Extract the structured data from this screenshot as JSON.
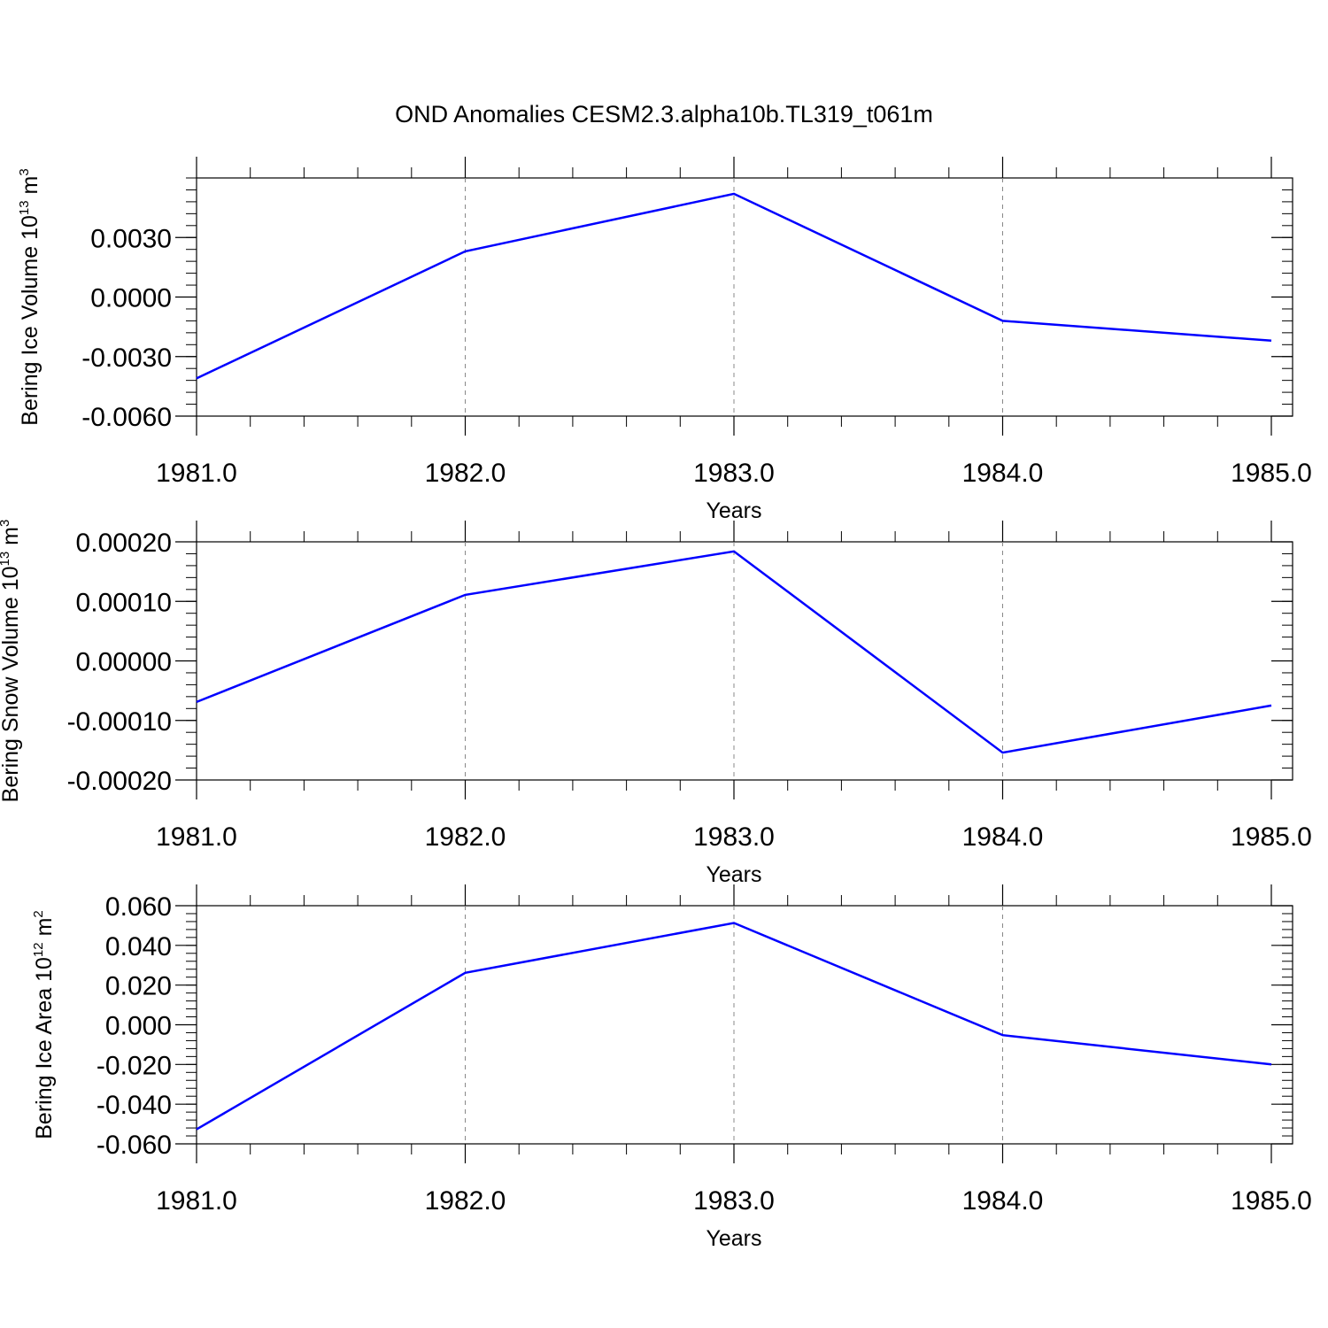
{
  "title": "OND Anomalies CESM2.3.alpha10b.TL319_t061m",
  "colors": {
    "series": "#0000ff",
    "axes": "#000000",
    "grid": "#888888"
  },
  "chart_data": [
    {
      "type": "line",
      "xlabel": "Years",
      "ylabel": {
        "main": "Bering Ice Volume 10",
        "exp": "13",
        "unit": " m",
        "unit_exp": "3"
      },
      "xlim": [
        1981,
        1985
      ],
      "ylim": [
        -0.006,
        0.006
      ],
      "xticks": [
        1981,
        1982,
        1983,
        1984,
        1985
      ],
      "xtick_labels": [
        "1981.0",
        "1982.0",
        "1983.0",
        "1984.0",
        "1985.0"
      ],
      "yticks": [
        0.003,
        0.0,
        -0.003,
        -0.006
      ],
      "ytick_labels": [
        "0.0030",
        "0.0000",
        "-0.0030",
        "-0.0060"
      ],
      "x": [
        1981,
        1982,
        1983,
        1984,
        1985
      ],
      "y": [
        -0.0041,
        0.0023,
        0.0052,
        -0.0012,
        -0.0022
      ],
      "grid": "vertical dashed at major x ticks"
    },
    {
      "type": "line",
      "xlabel": "Years",
      "ylabel": {
        "main": "Bering Snow Volume 10",
        "exp": "13",
        "unit": " m",
        "unit_exp": "3"
      },
      "xlim": [
        1981,
        1985
      ],
      "ylim": [
        -0.0002,
        0.0002
      ],
      "xticks": [
        1981,
        1982,
        1983,
        1984,
        1985
      ],
      "xtick_labels": [
        "1981.0",
        "1982.0",
        "1983.0",
        "1984.0",
        "1985.0"
      ],
      "yticks": [
        0.0002,
        0.0001,
        0.0,
        -0.0001,
        -0.0002
      ],
      "ytick_labels": [
        "0.00020",
        "0.00010",
        "0.00000",
        "-0.00010",
        "-0.00020"
      ],
      "x": [
        1981,
        1982,
        1983,
        1984,
        1985
      ],
      "y": [
        -6.9e-05,
        0.000111,
        0.000184,
        -0.000154,
        -7.5e-05
      ],
      "grid": "vertical dashed at major x ticks"
    },
    {
      "type": "line",
      "xlabel": "Years",
      "ylabel": {
        "main": "Bering Ice Area 10",
        "exp": "12",
        "unit": " m",
        "unit_exp": "2"
      },
      "xlim": [
        1981,
        1985
      ],
      "ylim": [
        -0.06,
        0.06
      ],
      "xticks": [
        1981,
        1982,
        1983,
        1984,
        1985
      ],
      "xtick_labels": [
        "1981.0",
        "1982.0",
        "1983.0",
        "1984.0",
        "1985.0"
      ],
      "yticks": [
        0.06,
        0.04,
        0.02,
        0.0,
        -0.02,
        -0.04,
        -0.06
      ],
      "ytick_labels": [
        "0.060",
        "0.040",
        "0.020",
        "0.000",
        "-0.020",
        "-0.040",
        "-0.060"
      ],
      "x": [
        1981,
        1982,
        1983,
        1984,
        1985
      ],
      "y": [
        -0.0527,
        0.0262,
        0.0513,
        -0.0052,
        -0.02
      ],
      "grid": "vertical dashed at major x ticks"
    }
  ]
}
